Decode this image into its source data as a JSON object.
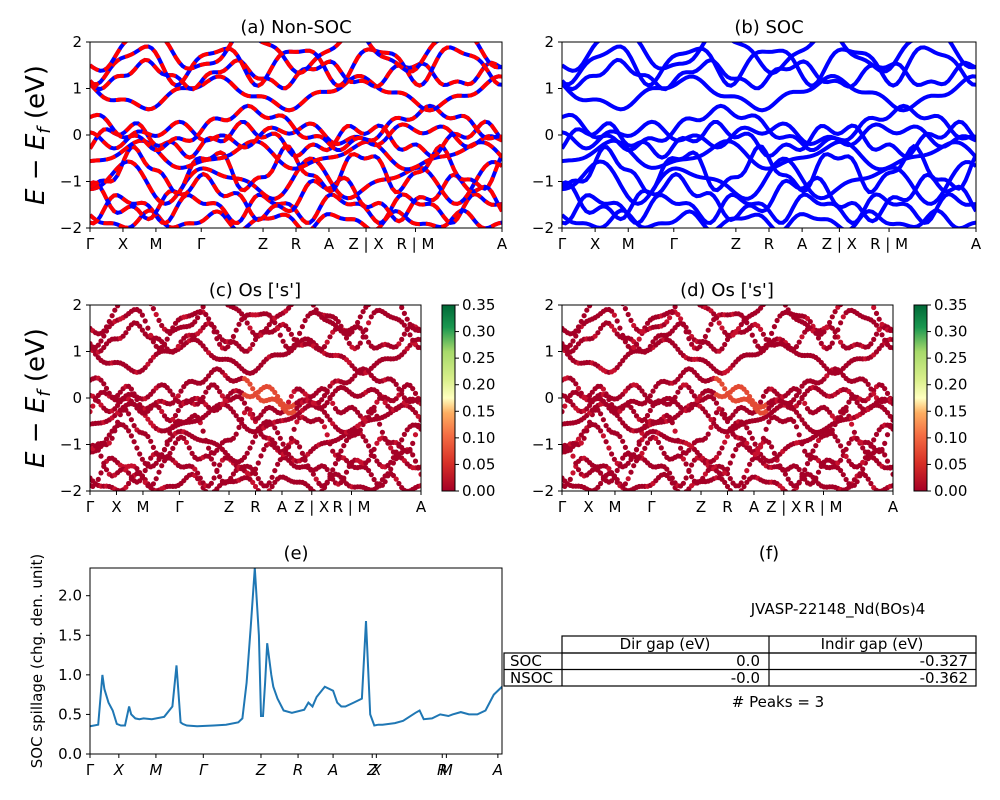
{
  "figure": {
    "band_ylabel": "E − E_f (eV)",
    "band_ylim": [
      -2,
      2
    ],
    "band_yticks": [
      "−2",
      "−1",
      "0",
      "1",
      "2"
    ],
    "kpath_labels": [
      "Γ",
      "X",
      "M",
      "Γ",
      "Z",
      "R",
      "A",
      "Z | X",
      "R | M",
      "A"
    ],
    "kpath_labels_small": [
      "Γ",
      "X",
      "M",
      "Γ",
      "Z",
      "R",
      "A",
      "Z | X",
      "R | M",
      "A"
    ],
    "kpath_positions": [
      0,
      0.08,
      0.16,
      0.27,
      0.42,
      0.5,
      0.58,
      0.67,
      0.79,
      1.0
    ],
    "spillage_xlabels": [
      "Γ",
      "X",
      "M",
      "Γ",
      "Z",
      "R",
      "A",
      "Z",
      "X",
      "R",
      "M",
      "A"
    ]
  },
  "panels": {
    "a": {
      "title": "(a) Non-SOC",
      "colors": [
        "#ff0000",
        "#0000ff"
      ]
    },
    "b": {
      "title": "(b) SOC",
      "color": "#0000ff"
    },
    "c": {
      "title": "(c)  Os ['s']"
    },
    "d": {
      "title": "(d) Os ['s']"
    },
    "e": {
      "title": "(e)",
      "ylabel": "SOC spillage (chg. den. unit)",
      "color": "#1f77b4"
    },
    "f": {
      "title": "(f)"
    }
  },
  "colorbar": {
    "ticks": [
      "0.35",
      "0.30",
      "0.25",
      "0.20",
      "0.15",
      "0.10",
      "0.05",
      "0.00"
    ],
    "range": [
      0,
      0.35
    ],
    "colormap": "RdYlGn"
  },
  "info": {
    "material": "JVASP-22148_Nd(BOs)4",
    "col_dir": "Dir gap (eV)",
    "col_indir": "Indir gap (eV)",
    "rows": [
      {
        "label": "SOC",
        "dir": "0.0",
        "indir": "-0.327"
      },
      {
        "label": "NSOC",
        "dir": "-0.0",
        "indir": "-0.362"
      }
    ],
    "peaks": "# Peaks = 3"
  },
  "chart_data": [
    {
      "type": "line",
      "title": "(a) Non-SOC",
      "ylabel": "E − E_f (eV)",
      "ylim": [
        -2,
        2
      ],
      "xticklabels": [
        "Γ",
        "X",
        "M",
        "Γ",
        "Z",
        "R",
        "A",
        "Z | X",
        "R | M",
        "A"
      ],
      "series": [
        {
          "values": [
            -1.85,
            -1.55,
            -1.35,
            -1.0,
            -0.75,
            -0.45,
            -0.1,
            0.0,
            0.15,
            0.9,
            1.3,
            1.55,
            1.8
          ]
        }
      ]
    },
    {
      "type": "line",
      "title": "(b) SOC",
      "ylim": [
        -2,
        2
      ],
      "xticklabels": [
        "Γ",
        "X",
        "M",
        "Γ",
        "Z",
        "R",
        "A",
        "Z | X",
        "R | M",
        "A"
      ],
      "series": [
        {
          "values": [
            -1.85,
            -1.55,
            -1.35,
            -1.0,
            -0.75,
            -0.45,
            -0.1,
            0.0,
            0.15,
            0.9,
            1.3,
            1.55,
            1.8
          ]
        }
      ]
    },
    {
      "type": "scatter",
      "title": "(c)  Os ['s']",
      "ylim": [
        -2,
        2
      ],
      "colorbar_range": [
        0,
        0.35
      ]
    },
    {
      "type": "scatter",
      "title": "(d) Os ['s']",
      "ylim": [
        -2,
        2
      ],
      "colorbar_range": [
        0,
        0.35
      ]
    },
    {
      "type": "line",
      "title": "(e)",
      "ylabel": "SOC spillage (chg. den. unit)",
      "ylim": [
        0,
        2.35
      ],
      "yticks": [
        "0.0",
        "0.5",
        "1.0",
        "1.5",
        "2.0"
      ],
      "x": [
        0,
        0.02,
        0.03,
        0.035,
        0.045,
        0.055,
        0.065,
        0.075,
        0.085,
        0.095,
        0.1,
        0.11,
        0.12,
        0.13,
        0.15,
        0.18,
        0.2,
        0.21,
        0.22,
        0.225,
        0.235,
        0.26,
        0.3,
        0.33,
        0.36,
        0.37,
        0.38,
        0.39,
        0.4,
        0.41,
        0.415,
        0.42,
        0.425,
        0.43,
        0.44,
        0.445,
        0.455,
        0.47,
        0.49,
        0.52,
        0.53,
        0.54,
        0.55,
        0.57,
        0.59,
        0.6,
        0.61,
        0.62,
        0.64,
        0.66,
        0.67,
        0.68,
        0.69,
        0.7,
        0.71,
        0.74,
        0.76,
        0.79,
        0.8,
        0.81,
        0.83,
        0.85,
        0.87,
        0.88,
        0.9,
        0.92,
        0.94,
        0.96,
        0.98,
        1.0
      ],
      "values": [
        0.35,
        0.37,
        1.0,
        0.82,
        0.65,
        0.55,
        0.38,
        0.36,
        0.36,
        0.6,
        0.5,
        0.45,
        0.44,
        0.45,
        0.44,
        0.47,
        0.6,
        1.12,
        0.4,
        0.38,
        0.36,
        0.35,
        0.36,
        0.37,
        0.4,
        0.45,
        0.9,
        1.6,
        2.35,
        1.5,
        0.48,
        0.48,
        0.9,
        1.4,
        1.0,
        0.85,
        0.7,
        0.55,
        0.52,
        0.56,
        0.65,
        0.6,
        0.72,
        0.85,
        0.8,
        0.65,
        0.6,
        0.6,
        0.65,
        0.7,
        1.68,
        0.5,
        0.36,
        0.37,
        0.37,
        0.39,
        0.42,
        0.52,
        0.55,
        0.44,
        0.45,
        0.5,
        0.48,
        0.5,
        0.53,
        0.5,
        0.5,
        0.55,
        0.75,
        0.85
      ]
    }
  ]
}
